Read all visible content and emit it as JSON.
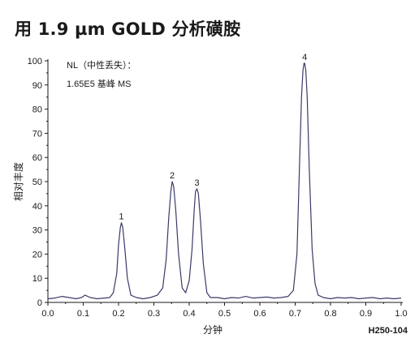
{
  "title": "用 1.9 µm GOLD 分析磺胺",
  "chart_data": {
    "type": "line",
    "xlabel": "分钟",
    "ylabel": "相对丰度",
    "xlim": [
      0.0,
      1.0
    ],
    "ylim": [
      0,
      100
    ],
    "x_ticks": [
      "0.0",
      "0.1",
      "0.2",
      "0.3",
      "0.4",
      "0.5",
      "0.6",
      "0.7",
      "0.8",
      "0.9",
      "1.0"
    ],
    "y_ticks": [
      "0",
      "10",
      "20",
      "30",
      "40",
      "50",
      "60",
      "70",
      "80",
      "90",
      "100"
    ],
    "grid": false,
    "annotation_lines": [
      "NL（中性丢失）：",
      "1.65E5 基峰 MS"
    ],
    "code": "H250-104",
    "line_color": "#3a3a6a",
    "peaks": [
      {
        "label": "1",
        "x": 0.208,
        "y": 33
      },
      {
        "label": "2",
        "x": 0.352,
        "y": 50
      },
      {
        "label": "3",
        "x": 0.422,
        "y": 47
      },
      {
        "label": "4",
        "x": 0.727,
        "y": 99
      }
    ],
    "series": [
      {
        "x": [
          0.0,
          0.02,
          0.04,
          0.06,
          0.08,
          0.095,
          0.105,
          0.12,
          0.14,
          0.16,
          0.175,
          0.185,
          0.195,
          0.2,
          0.205,
          0.208,
          0.212,
          0.218,
          0.225,
          0.235,
          0.25,
          0.27,
          0.29,
          0.31,
          0.325,
          0.335,
          0.342,
          0.348,
          0.352,
          0.356,
          0.362,
          0.37,
          0.38,
          0.39,
          0.4,
          0.408,
          0.414,
          0.418,
          0.422,
          0.426,
          0.432,
          0.44,
          0.45,
          0.46,
          0.48,
          0.5,
          0.52,
          0.54,
          0.56,
          0.58,
          0.6,
          0.62,
          0.64,
          0.66,
          0.68,
          0.695,
          0.705,
          0.712,
          0.718,
          0.722,
          0.725,
          0.727,
          0.73,
          0.734,
          0.74,
          0.748,
          0.756,
          0.765,
          0.78,
          0.8,
          0.82,
          0.84,
          0.86,
          0.88,
          0.9,
          0.92,
          0.94,
          0.96,
          0.98,
          1.0
        ],
        "y": [
          1.5,
          1.8,
          2.5,
          2.0,
          1.5,
          2.0,
          3.0,
          2.0,
          1.5,
          1.8,
          2.0,
          4.0,
          12.0,
          24.0,
          31.0,
          33.0,
          31.0,
          22.0,
          10.0,
          3.0,
          2.0,
          1.5,
          2.0,
          3.0,
          6.0,
          18.0,
          35.0,
          46.0,
          50.0,
          48.0,
          38.0,
          20.0,
          6.0,
          4.0,
          9.0,
          22.0,
          38.0,
          46.0,
          47.0,
          45.0,
          34.0,
          16.0,
          4.0,
          2.0,
          2.0,
          1.5,
          2.0,
          1.8,
          2.5,
          1.8,
          2.0,
          2.2,
          1.8,
          2.0,
          2.5,
          5.0,
          20.0,
          55.0,
          85.0,
          96.0,
          99.0,
          99.0,
          96.0,
          85.0,
          55.0,
          22.0,
          8.0,
          3.0,
          2.0,
          1.5,
          2.0,
          1.8,
          2.0,
          1.5,
          1.8,
          2.0,
          1.5,
          1.8,
          1.5,
          1.8
        ]
      }
    ]
  }
}
